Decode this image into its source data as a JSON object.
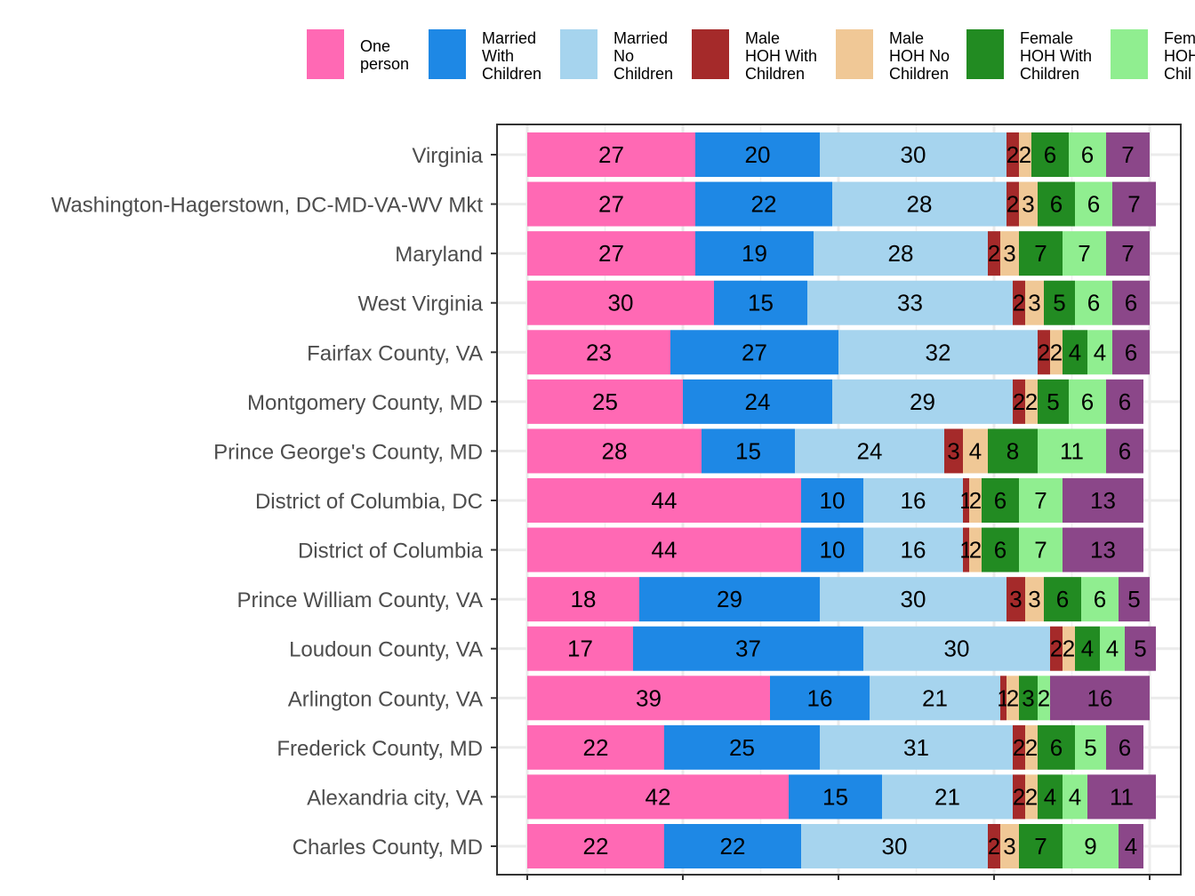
{
  "chart_data": {
    "type": "bar",
    "orientation": "horizontal",
    "stacked": true,
    "title": "",
    "xlabel": "",
    "ylabel": "",
    "xlim": [
      0,
      100
    ],
    "grid": true,
    "legend_position": "top",
    "categories": [
      "Virginia",
      "Washington-Hagerstown, DC-MD-VA-WV Mkt",
      "Maryland",
      "West Virginia",
      "Fairfax County, VA",
      "Montgomery County, MD",
      "Prince George's County, MD",
      "District of Columbia, DC",
      "District of Columbia",
      "Prince William County, VA",
      "Loudoun County, VA",
      "Arlington County, VA",
      "Frederick County, MD",
      "Alexandria city, VA",
      "Charles County, MD"
    ],
    "series": [
      {
        "name": "One\nperson",
        "color": "#FF69B4",
        "values": [
          27,
          27,
          27,
          30,
          23,
          25,
          28,
          44,
          44,
          18,
          17,
          39,
          22,
          42,
          22
        ]
      },
      {
        "name": "Married\nWith\nChildren",
        "color": "#1E88E5",
        "values": [
          20,
          22,
          19,
          15,
          27,
          24,
          15,
          10,
          10,
          29,
          37,
          16,
          25,
          15,
          22
        ]
      },
      {
        "name": "Married\nNo\nChildren",
        "color": "#A6D4EE",
        "values": [
          30,
          28,
          28,
          33,
          32,
          29,
          24,
          16,
          16,
          30,
          30,
          21,
          31,
          21,
          30
        ]
      },
      {
        "name": "Male\nHOH With\nChildren",
        "color": "#A52A2A",
        "values": [
          2,
          2,
          2,
          2,
          2,
          2,
          3,
          1,
          1,
          3,
          2,
          1,
          2,
          2,
          2
        ]
      },
      {
        "name": "Male\nHOH No\nChildren",
        "color": "#F0C896",
        "values": [
          2,
          3,
          3,
          3,
          2,
          2,
          4,
          2,
          2,
          3,
          2,
          2,
          2,
          2,
          3
        ]
      },
      {
        "name": "Female\nHOH With\nChildren",
        "color": "#228B22",
        "values": [
          6,
          6,
          7,
          5,
          4,
          5,
          8,
          6,
          6,
          6,
          4,
          3,
          6,
          4,
          7
        ]
      },
      {
        "name": "Fem\nHOH\nChil",
        "color": "#90EE90",
        "values": [
          6,
          6,
          7,
          6,
          4,
          6,
          11,
          7,
          7,
          6,
          4,
          2,
          5,
          4,
          9
        ]
      },
      {
        "color": "#8B4789",
        "values": [
          7,
          7,
          7,
          6,
          6,
          6,
          6,
          13,
          13,
          5,
          5,
          16,
          6,
          11,
          4
        ]
      }
    ]
  }
}
